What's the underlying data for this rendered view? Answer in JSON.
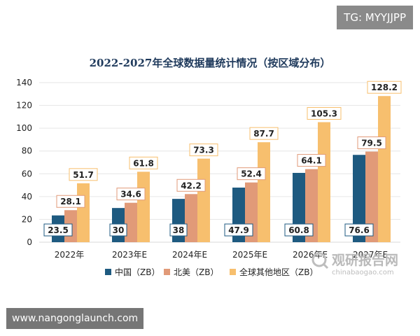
{
  "overlay": {
    "tag": "TG: MYYJJPP",
    "url": "www.nangonglaunch.com"
  },
  "watermark": {
    "cn": "观研报告网",
    "en": "chinabaogao.com"
  },
  "chart_data": {
    "type": "bar",
    "title": "2022-2027年全球数据量统计情况（按区域分布）",
    "categories": [
      "2022年",
      "2023年E",
      "2024年E",
      "2025年E",
      "2026年E",
      "2027年E"
    ],
    "series": [
      {
        "name": "中国（ZB）",
        "values": [
          23.5,
          30,
          38,
          47.9,
          60.8,
          76.6
        ],
        "color": "#1e5a80"
      },
      {
        "name": "北美（ZB）",
        "values": [
          28.1,
          34.6,
          42.2,
          52.4,
          64.1,
          79.5
        ],
        "color": "#e19a78"
      },
      {
        "name": "全球其他地区（ZB）",
        "values": [
          51.7,
          61.8,
          73.3,
          87.7,
          105.3,
          128.2
        ],
        "color": "#f7bf6e"
      }
    ],
    "ylim": [
      0,
      140
    ],
    "yticks": [
      "0",
      "20",
      "40",
      "60",
      "80",
      "100",
      "120",
      "140"
    ],
    "grid": true,
    "legend": "bottom"
  }
}
